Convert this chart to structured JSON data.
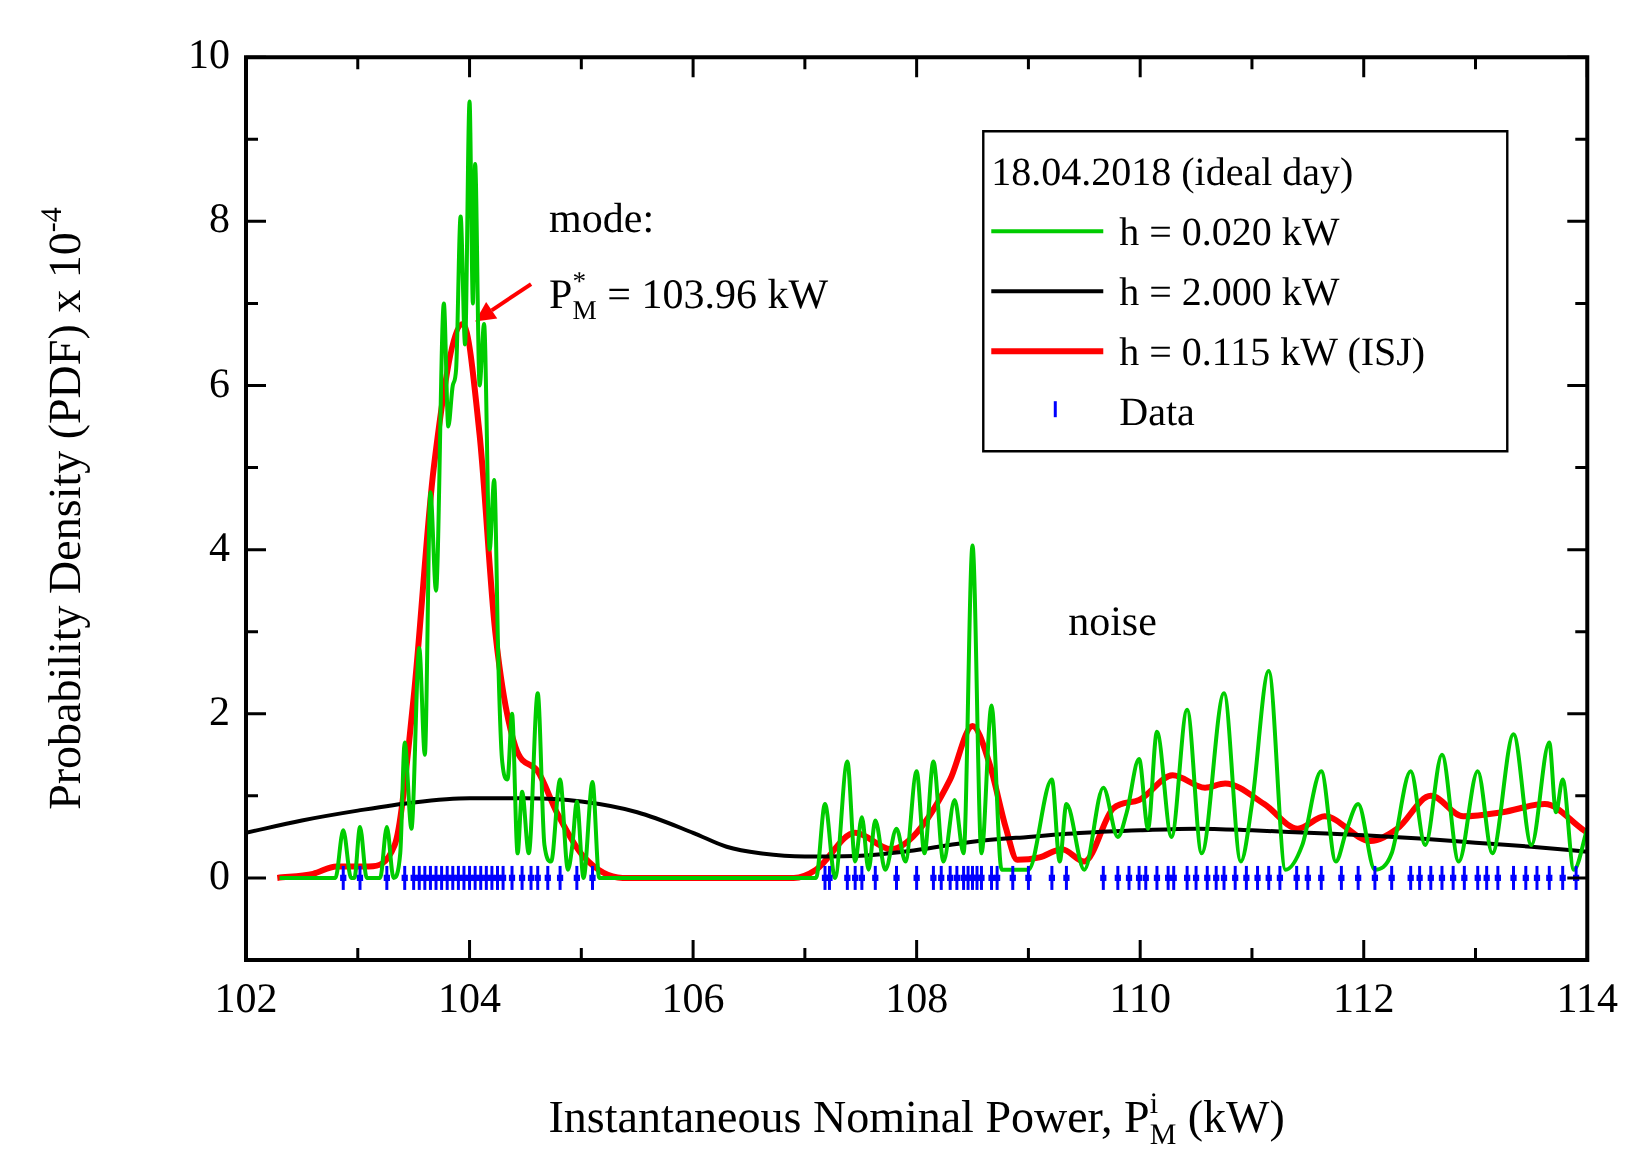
{
  "chart_data": {
    "type": "line",
    "xlabel": "Instantaneous Nominal Power, P$_{M}$$^{i}$ (kW)",
    "ylabel": "Probability Density (PDF) x 10$^{-4}$",
    "legend_title": "18.04.2018 (ideal day)",
    "legend": "top right",
    "grid": false,
    "line_style": "solid",
    "xlim": [
      102,
      114
    ],
    "ylim": [
      -1,
      10
    ],
    "xticks": [
      102,
      {
        "value": 103,
        "label": null
      },
      104,
      {
        "value": 105,
        "label": null
      },
      106,
      {
        "value": 107,
        "label": null
      },
      108,
      {
        "value": 109,
        "label": null
      },
      110,
      {
        "value": 111,
        "label": null
      },
      112,
      {
        "value": 113,
        "label": null
      },
      114
    ],
    "yticks": [
      0,
      {
        "value": 1,
        "label": null
      },
      2,
      {
        "value": 3,
        "label": null
      },
      4,
      {
        "value": 5,
        "label": null
      },
      6,
      {
        "value": 7,
        "label": null
      },
      8,
      {
        "value": 9,
        "label": null
      },
      10
    ],
    "annotations": [
      {
        "text": "mode:\nP$_{M}$$^{*}$ = 103.96 kW",
        "x": 103.96,
        "y": 6.7
      },
      "noise"
    ],
    "series": [
      {
        "name": "h = 0.020 kW",
        "type": "line",
        "color": "#00cc00",
        "x": [
          102.3,
          102.8,
          102.87,
          102.94,
          102.97,
          103.02,
          103.08,
          103.2,
          103.26,
          103.32,
          103.38,
          103.42,
          103.48,
          103.55,
          103.6,
          103.65,
          103.7,
          103.77,
          103.81,
          103.85,
          103.88,
          103.92,
          103.96,
          104.0,
          104.03,
          104.05,
          104.09,
          104.13,
          104.18,
          104.22,
          104.26,
          104.29,
          104.34,
          104.38,
          104.43,
          104.47,
          104.53,
          104.61,
          104.67,
          104.73,
          104.81,
          104.88,
          104.92,
          104.96,
          105.02,
          105.1,
          105.16,
          107.1,
          107.18,
          107.27,
          107.38,
          107.45,
          107.51,
          107.57,
          107.63,
          107.72,
          107.82,
          107.9,
          108.0,
          108.07,
          108.15,
          108.24,
          108.34,
          108.42,
          108.5,
          108.58,
          108.67,
          108.76,
          109.0,
          109.21,
          109.28,
          109.34,
          109.5,
          109.67,
          109.8,
          109.88,
          109.99,
          110.07,
          110.15,
          110.28,
          110.42,
          110.55,
          110.75,
          110.9,
          111.0,
          111.15,
          111.3,
          111.45,
          111.62,
          111.75,
          111.85,
          111.95,
          112.1,
          112.25,
          112.42,
          112.55,
          112.7,
          112.85,
          113.02,
          113.15,
          113.34,
          113.5,
          113.66,
          113.72,
          113.78,
          113.88,
          114.0
        ],
        "values": [
          0,
          0,
          0.58,
          0,
          0,
          0.62,
          0,
          0,
          0.62,
          0,
          0.3,
          1.65,
          0.6,
          2.8,
          1.5,
          4.7,
          3.5,
          7.0,
          5.5,
          6.0,
          6.2,
          8.06,
          6.5,
          9.46,
          7.0,
          8.7,
          6.0,
          6.75,
          4.0,
          4.85,
          2.5,
          1.45,
          1.2,
          2.0,
          0.3,
          1.05,
          0.3,
          2.25,
          0.4,
          0.2,
          1.2,
          0.1,
          0.4,
          0.93,
          0,
          1.17,
          0,
          0,
          0.9,
          0,
          1.42,
          0.2,
          0.74,
          0.1,
          0.7,
          0.1,
          0.6,
          0.2,
          1.3,
          0.3,
          1.42,
          0.2,
          0.95,
          0.3,
          4.05,
          0.3,
          2.1,
          0.1,
          0.1,
          1.2,
          0.2,
          0.9,
          0.1,
          1.1,
          0.5,
          0.8,
          1.45,
          0.6,
          1.78,
          0.5,
          2.05,
          0.3,
          2.25,
          0.2,
          0.9,
          2.52,
          0.1,
          0.4,
          1.3,
          0.2,
          0.6,
          0.9,
          0.1,
          0.3,
          1.3,
          0.4,
          1.5,
          0.2,
          1.3,
          0.3,
          1.75,
          0.4,
          1.65,
          0.8,
          1.2,
          0.1,
          0.6
        ]
      },
      {
        "name": "h = 2.000 kW",
        "type": "line",
        "color": "#000000",
        "x": [
          102,
          102.5,
          103,
          103.5,
          104,
          104.5,
          105,
          105.5,
          106,
          106.3,
          106.6,
          107,
          107.5,
          108,
          108.5,
          109,
          109.5,
          110,
          110.5,
          111,
          111.5,
          112,
          112.5,
          113,
          113.5,
          114
        ],
        "values": [
          0.55,
          0.7,
          0.82,
          0.92,
          0.97,
          0.97,
          0.93,
          0.8,
          0.55,
          0.38,
          0.3,
          0.26,
          0.27,
          0.34,
          0.44,
          0.5,
          0.55,
          0.58,
          0.6,
          0.58,
          0.55,
          0.52,
          0.48,
          0.43,
          0.38,
          0.32
        ]
      },
      {
        "name": "h = 0.115 kW (ISJ)",
        "type": "line",
        "color": "#ff0000",
        "x": [
          102.28,
          102.6,
          102.81,
          103.1,
          103.33,
          103.5,
          103.68,
          103.94,
          104.09,
          104.23,
          104.41,
          104.61,
          104.78,
          105.02,
          105.37,
          106.9,
          107.1,
          107.45,
          107.77,
          108.0,
          108.3,
          108.5,
          108.65,
          108.8,
          108.9,
          109.1,
          109.3,
          109.5,
          109.76,
          109.99,
          110.29,
          110.58,
          110.76,
          111.11,
          111.41,
          111.65,
          112.06,
          112.3,
          112.6,
          112.89,
          113.24,
          113.62,
          113.95,
          114.0
        ],
        "values": [
          0,
          0.05,
          0.14,
          0.14,
          0.4,
          2.2,
          5.0,
          6.75,
          5.4,
          3.0,
          1.6,
          1.3,
          0.8,
          0.26,
          0,
          0,
          0.1,
          0.55,
          0.35,
          0.55,
          1.2,
          1.85,
          1.4,
          0.6,
          0.22,
          0.25,
          0.35,
          0.2,
          0.85,
          0.95,
          1.25,
          1.1,
          1.15,
          0.9,
          0.6,
          0.75,
          0.45,
          0.6,
          1.0,
          0.75,
          0.8,
          0.9,
          0.6,
          0.55
        ]
      },
      {
        "name": "Data",
        "type": "scatter",
        "color": "#0000ff",
        "x": [
          102.87,
          103.02,
          103.26,
          103.42,
          103.5,
          103.55,
          103.6,
          103.65,
          103.7,
          103.75,
          103.8,
          103.85,
          103.9,
          103.95,
          104.0,
          104.05,
          104.1,
          104.15,
          104.2,
          104.25,
          104.3,
          104.38,
          104.47,
          104.55,
          104.61,
          104.7,
          104.81,
          104.96,
          105.1,
          107.18,
          107.22,
          107.38,
          107.45,
          107.51,
          107.63,
          107.82,
          108.0,
          108.15,
          108.22,
          108.3,
          108.36,
          108.42,
          108.46,
          108.5,
          108.54,
          108.58,
          108.67,
          108.72,
          108.86,
          109.0,
          109.21,
          109.34,
          109.67,
          109.8,
          109.9,
          109.99,
          110.05,
          110.15,
          110.25,
          110.3,
          110.42,
          110.5,
          110.6,
          110.68,
          110.75,
          110.85,
          110.95,
          111.05,
          111.15,
          111.25,
          111.4,
          111.5,
          111.62,
          111.8,
          111.95,
          112.1,
          112.25,
          112.42,
          112.5,
          112.6,
          112.7,
          112.8,
          112.9,
          113.02,
          113.1,
          113.2,
          113.34,
          113.45,
          113.55,
          113.66,
          113.78,
          113.9
        ],
        "values": [
          0,
          0,
          0,
          0,
          0,
          0,
          0,
          0,
          0,
          0,
          0,
          0,
          0,
          0,
          0,
          0,
          0,
          0,
          0,
          0,
          0,
          0,
          0,
          0,
          0,
          0,
          0,
          0,
          0,
          0,
          0,
          0,
          0,
          0,
          0,
          0,
          0,
          0,
          0,
          0,
          0,
          0,
          0,
          0,
          0,
          0,
          0,
          0,
          0,
          0,
          0,
          0,
          0,
          0,
          0,
          0,
          0,
          0,
          0,
          0,
          0,
          0,
          0,
          0,
          0,
          0,
          0,
          0,
          0,
          0,
          0,
          0,
          0,
          0,
          0,
          0,
          0,
          0,
          0,
          0,
          0,
          0,
          0,
          0,
          0,
          0,
          0,
          0,
          0,
          0,
          0,
          0
        ]
      }
    ]
  }
}
